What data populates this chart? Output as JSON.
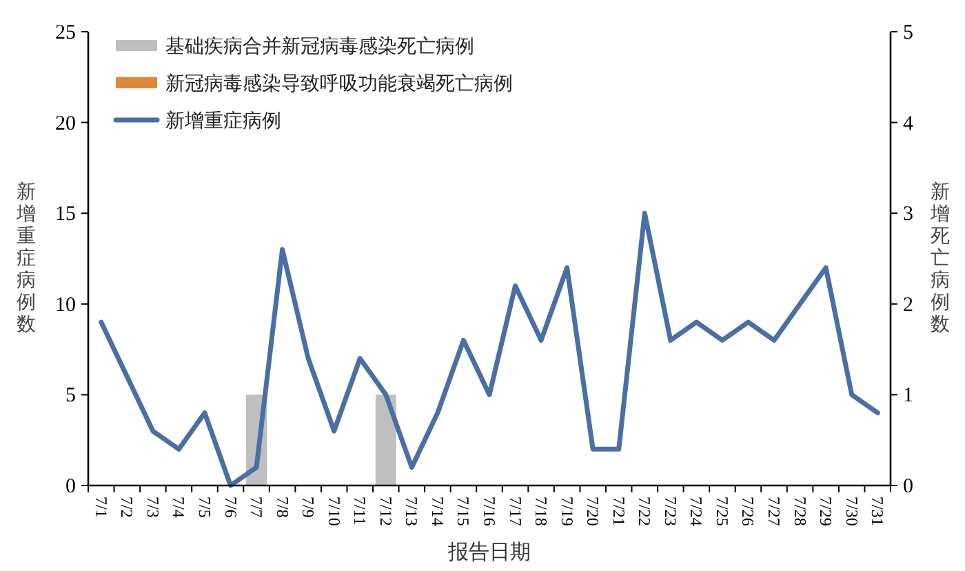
{
  "chart_data": {
    "type": "bar",
    "xlabel": "报告日期",
    "ylabel": "新增重症病例数",
    "y2label": "新增死亡病例数",
    "categories": [
      "7/1",
      "7/2",
      "7/3",
      "7/4",
      "7/5",
      "7/6",
      "7/7",
      "7/8",
      "7/9",
      "7/10",
      "7/11",
      "7/12",
      "7/13",
      "7/14",
      "7/15",
      "7/16",
      "7/17",
      "7/18",
      "7/19",
      "7/20",
      "7/21",
      "7/22",
      "7/23",
      "7/24",
      "7/25",
      "7/26",
      "7/27",
      "7/28",
      "7/29",
      "7/30",
      "7/31"
    ],
    "series": [
      {
        "name": "基础疾病合并新冠病毒感染死亡病例",
        "axis": "y2",
        "color": "#bfbfbf",
        "values": [
          null,
          null,
          null,
          null,
          null,
          null,
          1,
          null,
          null,
          null,
          null,
          1,
          null,
          null,
          null,
          null,
          null,
          null,
          null,
          null,
          null,
          null,
          null,
          null,
          null,
          null,
          null,
          null,
          null,
          null,
          null
        ]
      },
      {
        "name": "新冠病毒感染导致呼吸功能衰竭死亡病例",
        "axis": "y2",
        "color": "#e0873a",
        "values": [
          null,
          null,
          null,
          null,
          null,
          null,
          null,
          null,
          null,
          null,
          null,
          null,
          null,
          null,
          null,
          null,
          null,
          null,
          null,
          null,
          null,
          null,
          null,
          null,
          null,
          null,
          null,
          null,
          null,
          null,
          null
        ]
      },
      {
        "name": "新增重症病例",
        "type": "line",
        "color": "#4a6fa5",
        "values": [
          9,
          6,
          3,
          2,
          4,
          0,
          1,
          13,
          7,
          3,
          7,
          5,
          1,
          4,
          8,
          5,
          11,
          8,
          12,
          2,
          2,
          15,
          8,
          9,
          8,
          9,
          8,
          10,
          12,
          5,
          4
        ]
      }
    ],
    "ylim": [
      0,
      25
    ],
    "yticks": [
      0,
      5,
      10,
      15,
      20,
      25
    ],
    "y2lim": [
      0,
      5
    ],
    "y2ticks": [
      0,
      1,
      2,
      3,
      4,
      5
    ],
    "legend": "top left",
    "grid": false
  }
}
